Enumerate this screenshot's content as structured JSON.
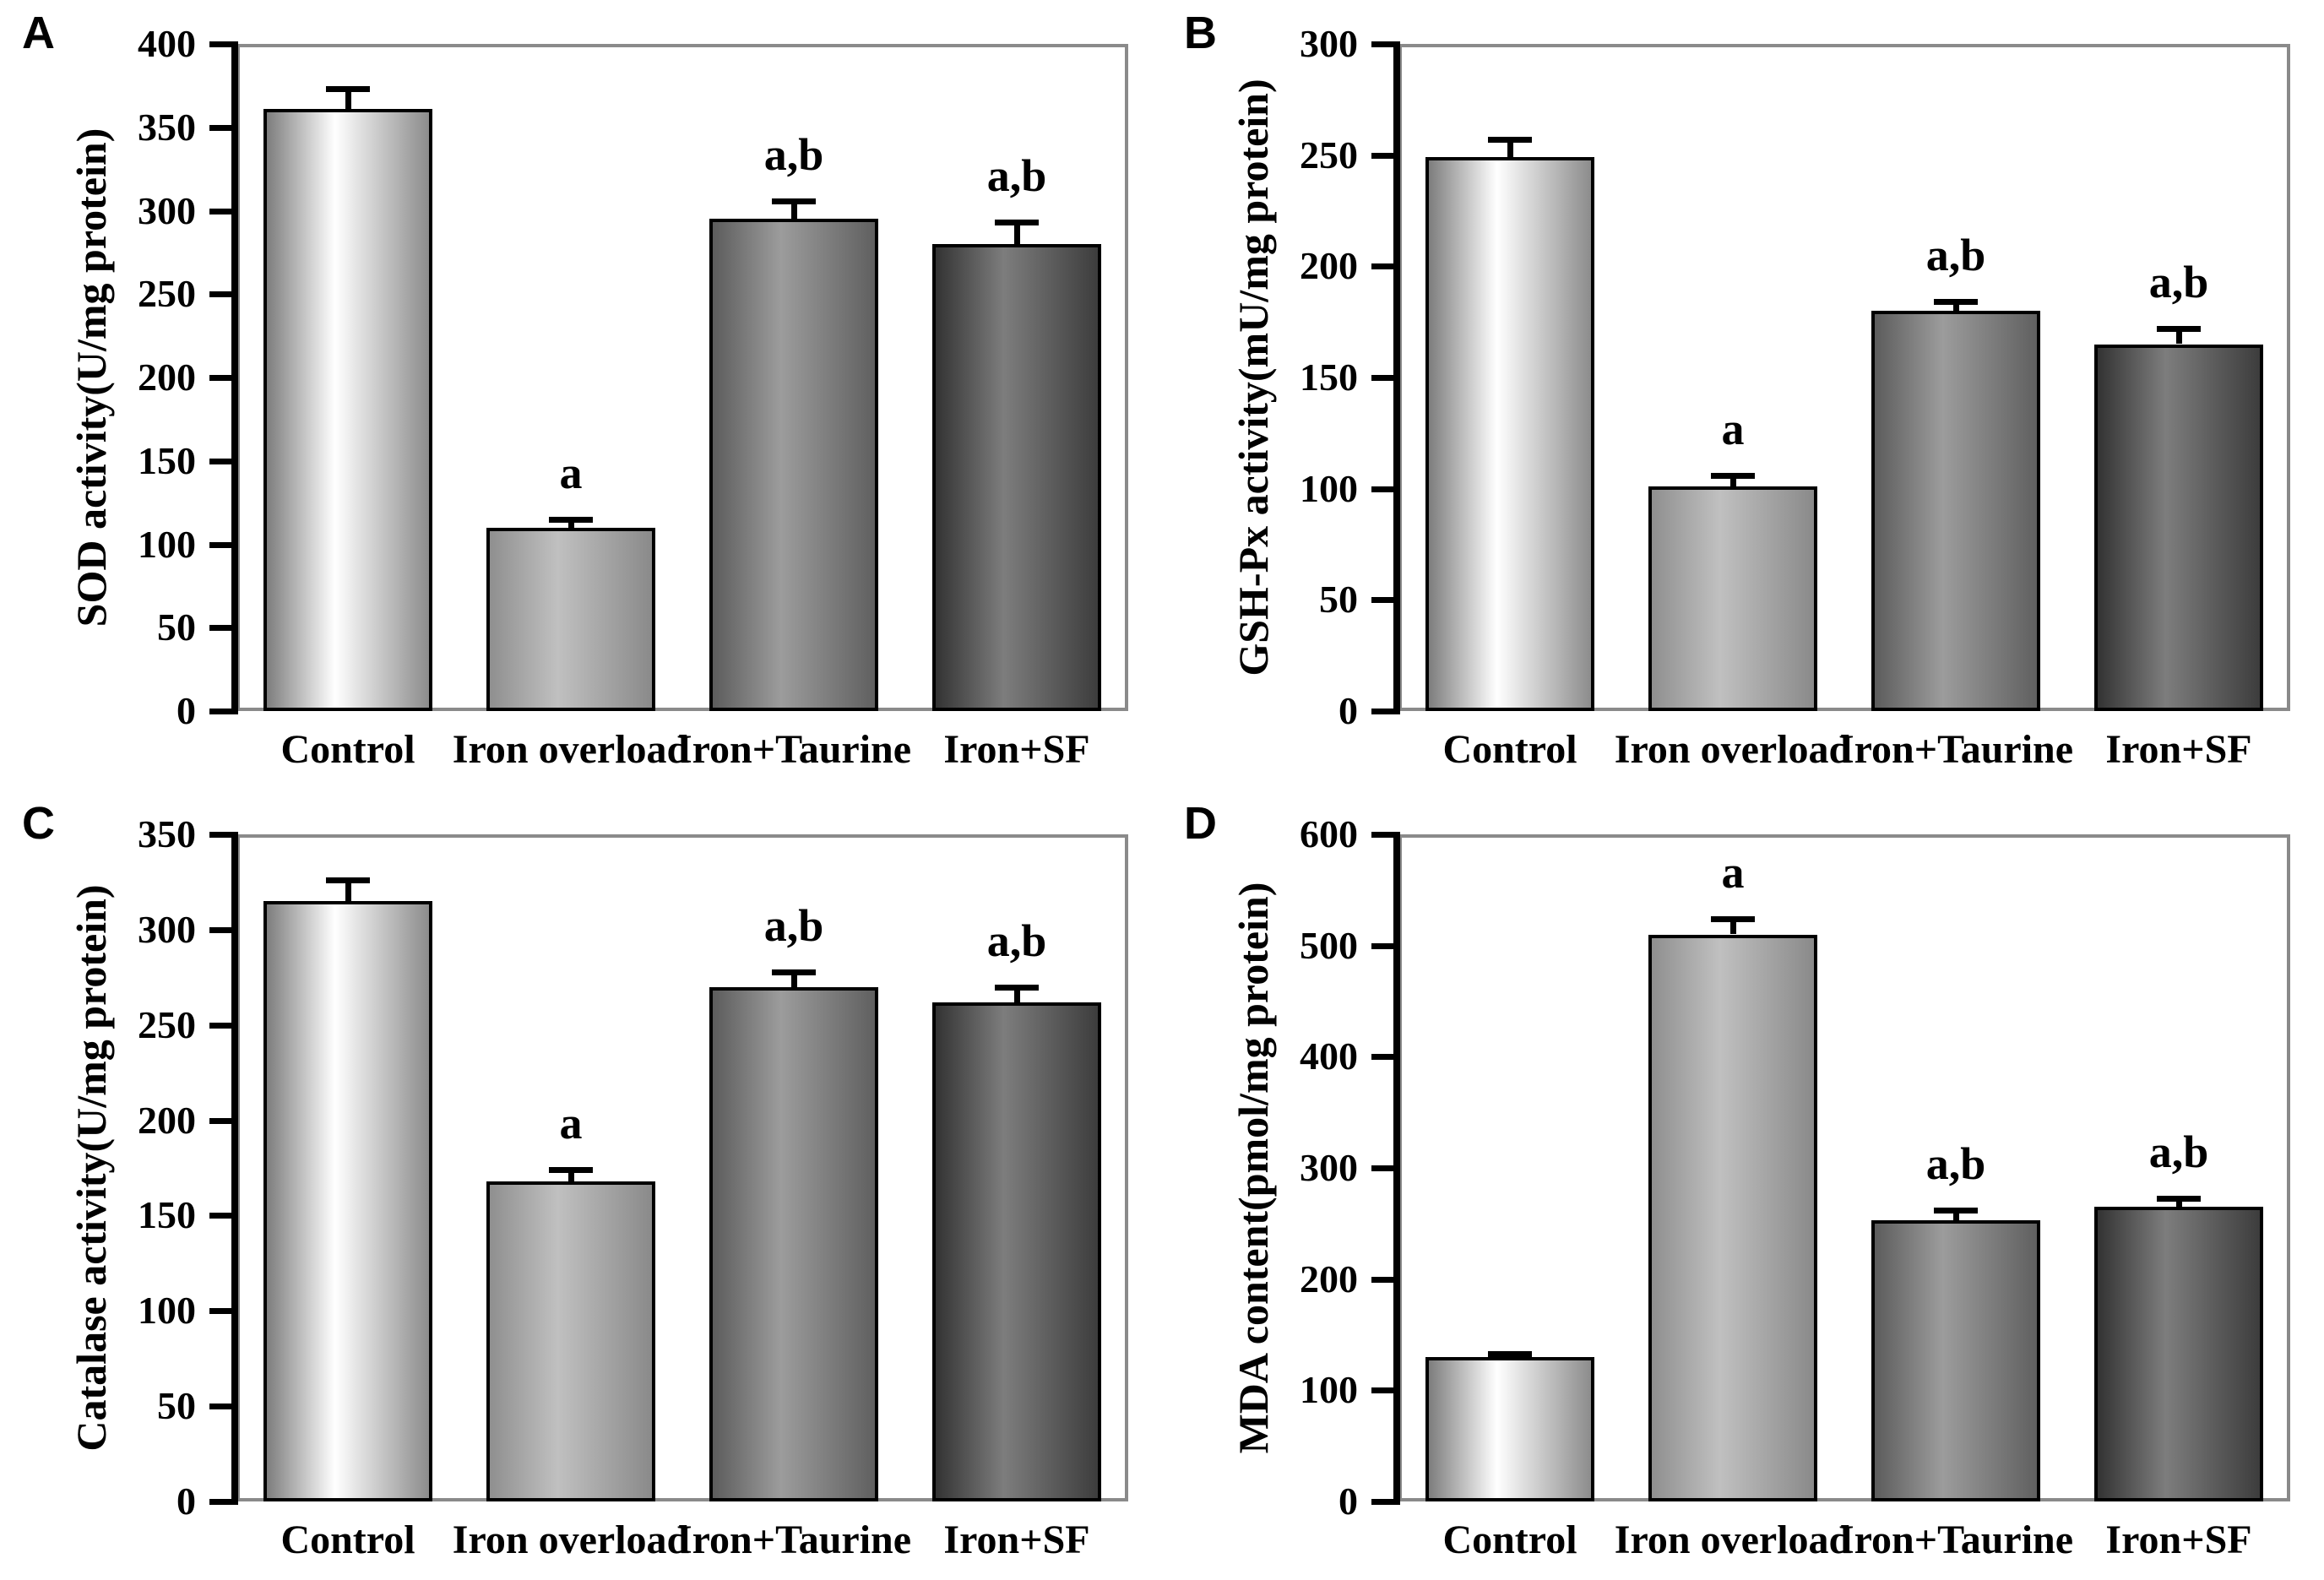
{
  "figure": {
    "group_count": 4,
    "colors": {
      "background": "#ffffff",
      "frame": "#8a8a8a",
      "axis": "#000000",
      "bar_outline": "#000000",
      "error_bar": "#000000",
      "text": "#000000"
    },
    "bar_gradients": [
      {
        "left": "#7d7d7d",
        "mid": "#ffffff",
        "right": "#8c8c8c"
      },
      {
        "left": "#8f8f8f",
        "mid": "#c0c0c0",
        "right": "#8a8a8a"
      },
      {
        "left": "#5c5c5c",
        "mid": "#9c9c9c",
        "right": "#606060"
      },
      {
        "left": "#333333",
        "mid": "#7d7d7d",
        "right": "#3d3d3d"
      }
    ]
  },
  "chart_data": [
    {
      "panel": "A",
      "type": "bar",
      "title": "",
      "xlabel": "",
      "ylabel": "SOD activity(U/mg protein)",
      "ylim": [
        0,
        400
      ],
      "ystep": 50,
      "grid": false,
      "legend": false,
      "categories": [
        "Control",
        "Iron overload",
        "Iron+Taurine",
        "Iron+SF"
      ],
      "values": [
        361,
        110,
        295,
        280
      ],
      "errors": [
        12,
        5,
        11,
        13
      ],
      "annotations": [
        "",
        "a",
        "a,b",
        "a,b"
      ]
    },
    {
      "panel": "B",
      "type": "bar",
      "title": "",
      "xlabel": "",
      "ylabel": "GSH-Px activity(mU/mg protein)",
      "ylim": [
        0,
        300
      ],
      "ystep": 50,
      "grid": false,
      "legend": false,
      "categories": [
        "Control",
        "Iron overload",
        "Iron+Taurine",
        "Iron+SF"
      ],
      "values": [
        249,
        101,
        180,
        165
      ],
      "errors": [
        8,
        5,
        4,
        7
      ],
      "annotations": [
        "",
        "a",
        "a,b",
        "a,b"
      ]
    },
    {
      "panel": "C",
      "type": "bar",
      "title": "",
      "xlabel": "",
      "ylabel": "Catalase activity(U/mg protein)",
      "ylim": [
        0,
        350
      ],
      "ystep": 50,
      "grid": false,
      "legend": false,
      "categories": [
        "Control",
        "Iron overload",
        "Iron+Taurine",
        "Iron+SF"
      ],
      "values": [
        315,
        168,
        270,
        262
      ],
      "errors": [
        11,
        6,
        8,
        8
      ],
      "annotations": [
        "",
        "a",
        "a,b",
        "a,b"
      ]
    },
    {
      "panel": "D",
      "type": "bar",
      "title": "",
      "xlabel": "",
      "ylabel": "MDA content(pmol/mg protein)",
      "ylim": [
        0,
        600
      ],
      "ystep": 100,
      "grid": false,
      "legend": false,
      "categories": [
        "Control",
        "Iron overload",
        "Iron+Taurine",
        "Iron+SF"
      ],
      "values": [
        130,
        510,
        253,
        265
      ],
      "errors": [
        3,
        14,
        9,
        8
      ],
      "annotations": [
        "",
        "a",
        "a,b",
        "a,b"
      ]
    }
  ]
}
